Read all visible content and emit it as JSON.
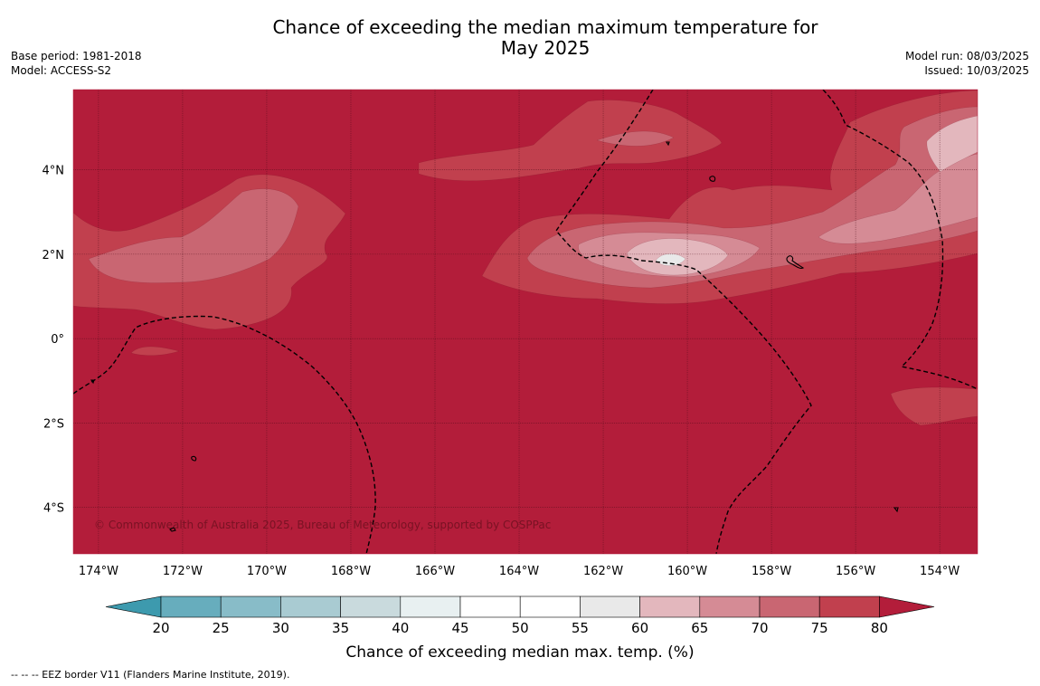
{
  "title": {
    "line1": "Chance of exceeding the median maximum temperature for",
    "line2": "May 2025"
  },
  "header_left": {
    "base_period": "Base period: 1981-2018",
    "model": "Model: ACCESS-S2"
  },
  "header_right": {
    "model_run": "Model run: 08/03/2025",
    "issued": "Issued: 10/03/2025"
  },
  "map": {
    "lon_range": [
      -174.6,
      -153.1
    ],
    "lat_range": [
      -5.1,
      5.9
    ],
    "lon_ticks": [
      {
        "value": -174,
        "label": "174°W"
      },
      {
        "value": -172,
        "label": "172°W"
      },
      {
        "value": -170,
        "label": "170°W"
      },
      {
        "value": -168,
        "label": "168°W"
      },
      {
        "value": -166,
        "label": "166°W"
      },
      {
        "value": -164,
        "label": "164°W"
      },
      {
        "value": -162,
        "label": "162°W"
      },
      {
        "value": -160,
        "label": "160°W"
      },
      {
        "value": -158,
        "label": "158°W"
      },
      {
        "value": -156,
        "label": "156°W"
      },
      {
        "value": -154,
        "label": "154°W"
      }
    ],
    "lat_ticks": [
      {
        "value": 4,
        "label": "4°N"
      },
      {
        "value": 2,
        "label": "2°N"
      },
      {
        "value": 0,
        "label": "0°"
      },
      {
        "value": -2,
        "label": "2°S"
      },
      {
        "value": -4,
        "label": "4°S"
      }
    ],
    "copyright": "© Commonwealth of Australia 2025, Bureau of Meteorology, supported by COSPPac",
    "background_color": "#b31d3a"
  },
  "colorbar": {
    "label": "Chance of exceeding median max. temp. (%)",
    "tick_labels": [
      "20",
      "25",
      "30",
      "35",
      "40",
      "45",
      "50",
      "55",
      "60",
      "65",
      "70",
      "75",
      "80"
    ],
    "colors": [
      "#3d9aae",
      "#67adbd",
      "#88bcc8",
      "#a9cbd2",
      "#c9dadd",
      "#e8f0f1",
      "#ffffff",
      "#ffffff",
      "#e9e9e9",
      "#e3b7bd",
      "#d58b95",
      "#c96672",
      "#c1404e",
      "#b31d3a"
    ]
  },
  "footer": "--  --  -- EEZ border V11 (Flanders Marine Institute, 2019)."
}
